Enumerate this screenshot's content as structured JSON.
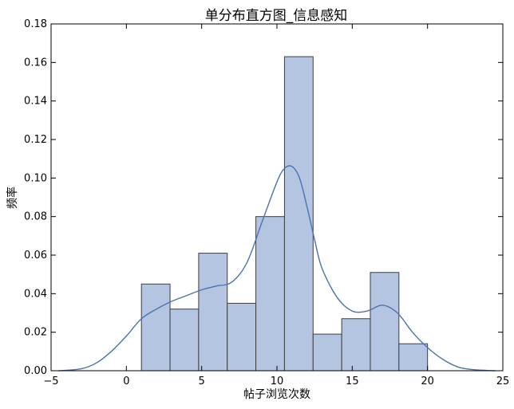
{
  "chart_data": {
    "type": "bar",
    "title": "单分布直方图_信息感知",
    "xlabel": "帖子浏览次数",
    "ylabel": "频率",
    "xlim": [
      -5,
      25
    ],
    "ylim": [
      0,
      0.18
    ],
    "xticks": [
      "−5",
      "0",
      "5",
      "10",
      "15",
      "20",
      "25"
    ],
    "xtick_values": [
      -5,
      0,
      5,
      10,
      15,
      20,
      25
    ],
    "yticks": [
      "0.00",
      "0.02",
      "0.04",
      "0.06",
      "0.08",
      "0.10",
      "0.12",
      "0.14",
      "0.16",
      "0.18"
    ],
    "ytick_values": [
      0,
      0.02,
      0.04,
      0.06,
      0.08,
      0.1,
      0.12,
      0.14,
      0.16,
      0.18
    ],
    "grid": false,
    "bins": [
      {
        "x0": 1.0,
        "x1": 2.9,
        "value": 0.045
      },
      {
        "x0": 2.9,
        "x1": 4.8,
        "value": 0.032
      },
      {
        "x0": 4.8,
        "x1": 6.7,
        "value": 0.061
      },
      {
        "x0": 6.7,
        "x1": 8.6,
        "value": 0.035
      },
      {
        "x0": 8.6,
        "x1": 10.5,
        "value": 0.08
      },
      {
        "x0": 10.5,
        "x1": 12.4,
        "value": 0.163
      },
      {
        "x0": 12.4,
        "x1": 14.3,
        "value": 0.019
      },
      {
        "x0": 14.3,
        "x1": 16.2,
        "value": 0.027
      },
      {
        "x0": 16.2,
        "x1": 18.1,
        "value": 0.051
      },
      {
        "x0": 18.1,
        "x1": 20.0,
        "value": 0.014
      }
    ],
    "kde": {
      "x": [
        -4.5,
        -3,
        -2,
        -1,
        0,
        1,
        2,
        3,
        4,
        5,
        6,
        7,
        8,
        9,
        10,
        10.5,
        11,
        11.5,
        12,
        12.5,
        13,
        14,
        15,
        16,
        17,
        18,
        19,
        20,
        21,
        22,
        23,
        24.5
      ],
      "y": [
        0,
        0.001,
        0.004,
        0.01,
        0.018,
        0.027,
        0.032,
        0.036,
        0.039,
        0.042,
        0.044,
        0.046,
        0.056,
        0.077,
        0.098,
        0.105,
        0.106,
        0.1,
        0.085,
        0.068,
        0.053,
        0.038,
        0.031,
        0.031,
        0.034,
        0.03,
        0.02,
        0.012,
        0.006,
        0.002,
        0.0006,
        0
      ]
    },
    "colors": {
      "bar_fill": "#b4c5e2",
      "bar_edge": "#3d3d3d",
      "kde_line": "#4c72b0"
    }
  }
}
